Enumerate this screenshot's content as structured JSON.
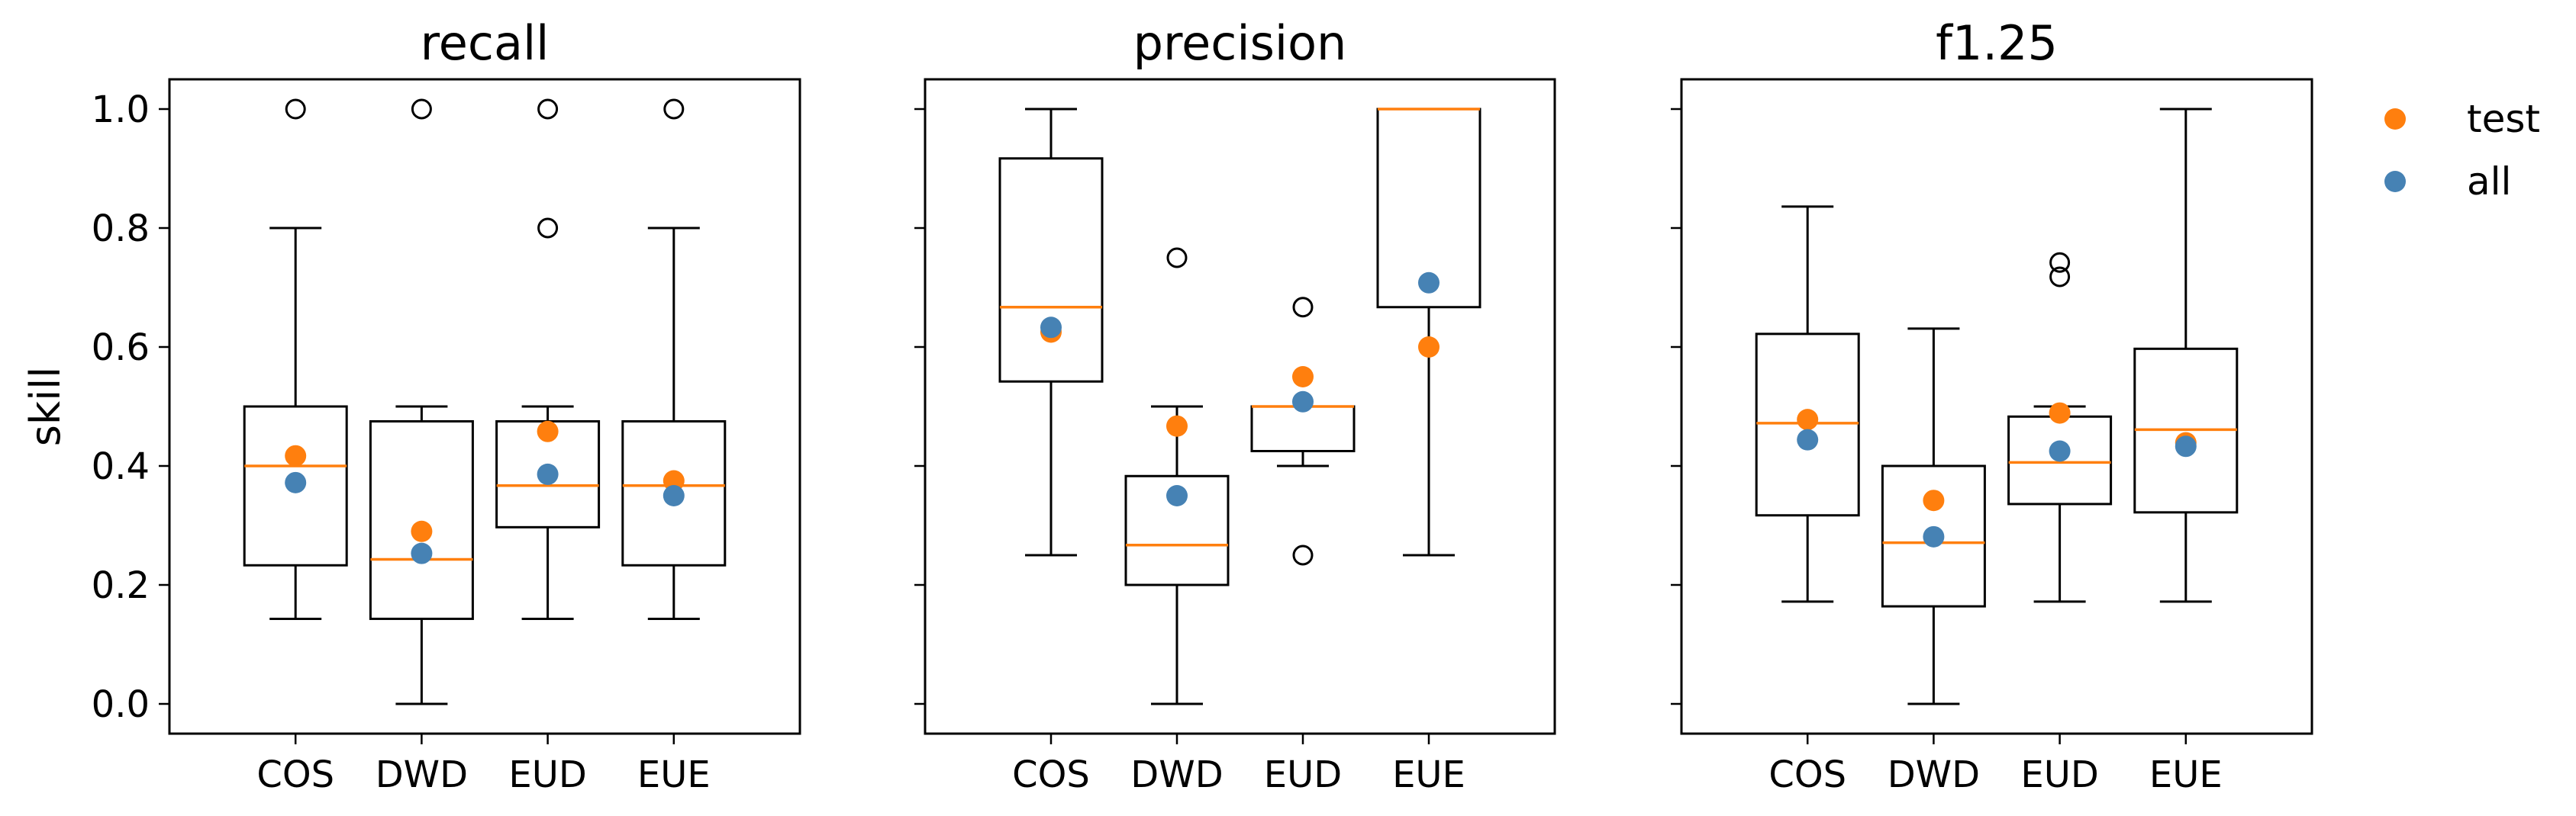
{
  "colors": {
    "median": "#ff7f0e",
    "test": "#ff7f0e",
    "all": "#4682b4",
    "box": "#000000"
  },
  "chart_data": {
    "type": "box",
    "ylabel": "skill",
    "ylim": [
      -0.05,
      1.05
    ],
    "yticks": [
      "0.0",
      "0.2",
      "0.4",
      "0.6",
      "0.8",
      "1.0"
    ],
    "legend": {
      "placement": "right",
      "entries": [
        {
          "label": "test",
          "color": "#ff7f0e"
        },
        {
          "label": "all",
          "color": "#4682b4"
        }
      ]
    },
    "panels": [
      {
        "title": "recall",
        "categories": [
          "COS",
          "DWD",
          "EUD",
          "EUE"
        ],
        "boxes": [
          {
            "whislo": 0.143,
            "q1": 0.233,
            "med": 0.4,
            "q3": 0.5,
            "whishi": 0.8,
            "fliers": [
              1.0
            ],
            "test": 0.417,
            "all": 0.372
          },
          {
            "whislo": 0.0,
            "q1": 0.143,
            "med": 0.243,
            "q3": 0.475,
            "whishi": 0.5,
            "fliers": [
              1.0
            ],
            "test": 0.29,
            "all": 0.253
          },
          {
            "whislo": 0.143,
            "q1": 0.297,
            "med": 0.367,
            "q3": 0.475,
            "whishi": 0.5,
            "fliers": [
              0.8,
              1.0
            ],
            "test": 0.458,
            "all": 0.386
          },
          {
            "whislo": 0.143,
            "q1": 0.233,
            "med": 0.367,
            "q3": 0.475,
            "whishi": 0.8,
            "fliers": [
              1.0
            ],
            "test": 0.375,
            "all": 0.35
          }
        ]
      },
      {
        "title": "precision",
        "categories": [
          "COS",
          "DWD",
          "EUD",
          "EUE"
        ],
        "boxes": [
          {
            "whislo": 0.25,
            "q1": 0.542,
            "med": 0.667,
            "q3": 0.917,
            "whishi": 1.0,
            "fliers": [],
            "test": 0.625,
            "all": 0.633
          },
          {
            "whislo": 0.0,
            "q1": 0.2,
            "med": 0.267,
            "q3": 0.383,
            "whishi": 0.5,
            "fliers": [
              0.75
            ],
            "test": 0.467,
            "all": 0.35
          },
          {
            "whislo": 0.4,
            "q1": 0.425,
            "med": 0.5,
            "q3": 0.5,
            "whishi": 0.5,
            "fliers": [
              0.25,
              0.667
            ],
            "test": 0.55,
            "all": 0.508
          },
          {
            "whislo": 0.25,
            "q1": 0.667,
            "med": 1.0,
            "q3": 1.0,
            "whishi": 1.0,
            "fliers": [],
            "test": 0.6,
            "all": 0.708
          }
        ]
      },
      {
        "title": "f1.25",
        "categories": [
          "COS",
          "DWD",
          "EUD",
          "EUE"
        ],
        "boxes": [
          {
            "whislo": 0.172,
            "q1": 0.317,
            "med": 0.472,
            "q3": 0.622,
            "whishi": 0.836,
            "fliers": [],
            "test": 0.478,
            "all": 0.444
          },
          {
            "whislo": 0.0,
            "q1": 0.164,
            "med": 0.271,
            "q3": 0.4,
            "whishi": 0.631,
            "fliers": [],
            "test": 0.342,
            "all": 0.281
          },
          {
            "whislo": 0.172,
            "q1": 0.336,
            "med": 0.406,
            "q3": 0.483,
            "whishi": 0.5,
            "fliers": [
              0.718,
              0.742
            ],
            "test": 0.489,
            "all": 0.425
          },
          {
            "whislo": 0.172,
            "q1": 0.322,
            "med": 0.461,
            "q3": 0.597,
            "whishi": 1.0,
            "fliers": [],
            "test": 0.439,
            "all": 0.433
          }
        ]
      }
    ]
  }
}
